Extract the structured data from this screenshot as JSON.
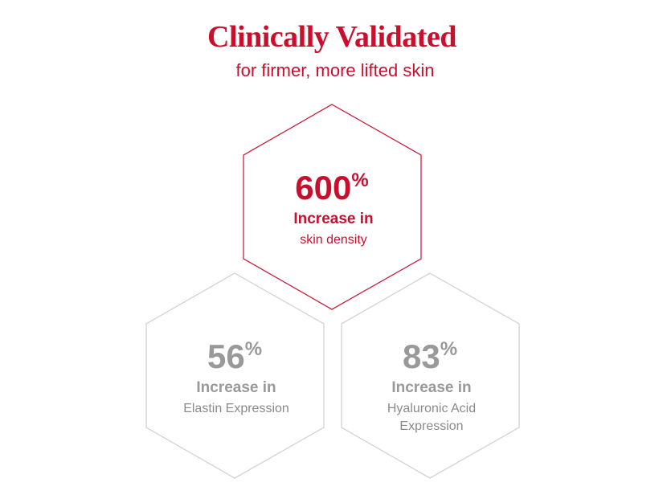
{
  "header": {
    "title": "Clinically Validated",
    "subtitle": "for firmer, more lifted skin"
  },
  "stats": [
    {
      "value": 600,
      "unit": "%",
      "headline": "Increase in",
      "detail": [
        "skin density"
      ]
    },
    {
      "value": 56,
      "unit": "%",
      "headline": "Increase in",
      "detail": [
        "Elastin Expression"
      ]
    },
    {
      "value": 83,
      "unit": "%",
      "headline": "Increase in",
      "detail": [
        "Hyaluronic Acid",
        "Expression"
      ]
    }
  ]
}
